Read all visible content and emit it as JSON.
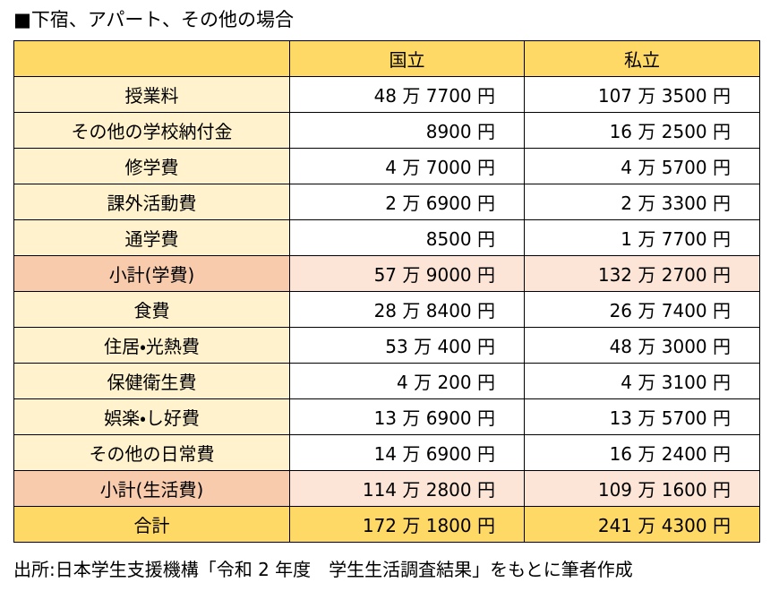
{
  "header": {
    "title": "■下宿、アパート、その他の場合"
  },
  "table": {
    "columns": [
      "国立",
      "私立"
    ],
    "rows": [
      [
        "授業料",
        "48 万 7700 円",
        "107 万 3500 円"
      ],
      [
        "その他の学校納付金",
        "8900 円",
        "16 万 2500 円"
      ],
      [
        "修学費",
        "4 万 7000 円",
        "4 万 5700 円"
      ],
      [
        "課外活動費",
        "2 万 6900 円",
        "2 万 3300 円"
      ],
      [
        "通学費",
        "8500 円",
        "1 万 7700 円"
      ],
      [
        "小計(学費)",
        "57 万 9000 円",
        "132 万 2700 円"
      ],
      [
        "食費",
        "28 万 8400 円",
        "26 万 7400 円"
      ],
      [
        "住居・光熱費",
        "53 万 400 円",
        "48 万 3000 円"
      ],
      [
        "保健衛生費",
        "4 万 200 円",
        "4 万 3100 円"
      ],
      [
        "娯楽・し好費",
        "13 万 6900 円",
        "13 万 5700 円"
      ],
      [
        "その他の日常費",
        "14 万 6900 円",
        "16 万 2400 円"
      ],
      [
        "小計(生活費)",
        "114 万 2800 円",
        "109 万 1600 円"
      ],
      [
        "合計",
        "172 万 1800 円",
        "241 万 4300 円"
      ]
    ]
  },
  "footer": {
    "source": "出所:日本学生支援機構「令和 2 年度　学生生活調査結果」をもとに筆者作成"
  }
}
